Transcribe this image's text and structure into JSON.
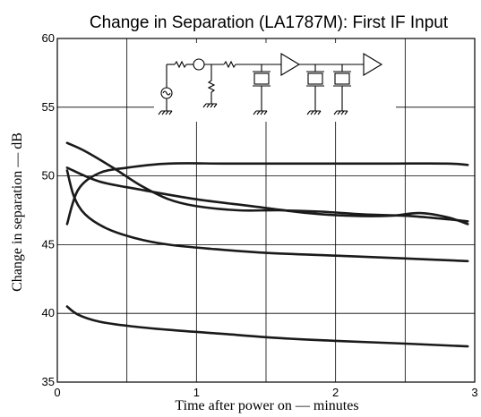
{
  "chart_data": {
    "type": "line",
    "title": "Change in Separation (LA1787M): First IF Input",
    "xlabel": "Time after power on — minutes",
    "ylabel": "Change in separation — dB",
    "xlim": [
      0,
      3
    ],
    "ylim": [
      35,
      60
    ],
    "xticks": [
      "0",
      "1",
      "2",
      "3"
    ],
    "yticks": [
      "35",
      "40",
      "45",
      "50",
      "55",
      "60"
    ],
    "grid": true,
    "inset": "circuit-schematic",
    "series": [
      {
        "x": [
          0.07,
          0.15,
          0.3,
          0.5,
          0.8,
          1.2,
          1.6,
          2.0,
          2.4,
          2.8,
          2.95
        ],
        "y": [
          46.5,
          49.0,
          50.2,
          50.6,
          50.9,
          50.9,
          50.9,
          50.9,
          50.9,
          50.9,
          50.8
        ]
      },
      {
        "x": [
          0.07,
          0.2,
          0.4,
          0.6,
          0.8,
          1.0,
          1.3,
          1.6,
          1.9,
          2.2,
          2.5,
          2.75,
          2.95
        ],
        "y": [
          52.4,
          51.8,
          50.6,
          49.3,
          48.3,
          47.8,
          47.5,
          47.5,
          47.4,
          47.2,
          47.1,
          46.9,
          46.7
        ]
      },
      {
        "x": [
          0.07,
          0.3,
          0.6,
          1.0,
          1.4,
          1.8,
          2.1,
          2.4,
          2.6,
          2.8,
          2.95
        ],
        "y": [
          50.6,
          49.6,
          49.0,
          48.3,
          47.8,
          47.3,
          47.1,
          47.1,
          47.3,
          47.0,
          46.5
        ]
      },
      {
        "x": [
          0.07,
          0.12,
          0.2,
          0.35,
          0.55,
          0.8,
          1.1,
          1.5,
          2.0,
          2.5,
          2.95
        ],
        "y": [
          50.4,
          48.5,
          47.2,
          46.2,
          45.5,
          45.0,
          44.7,
          44.4,
          44.2,
          44.0,
          43.8
        ]
      },
      {
        "x": [
          0.07,
          0.15,
          0.3,
          0.5,
          0.8,
          1.2,
          1.6,
          2.0,
          2.5,
          2.95
        ],
        "y": [
          40.5,
          39.9,
          39.4,
          39.1,
          38.8,
          38.5,
          38.2,
          38.0,
          37.8,
          37.6
        ]
      }
    ]
  }
}
